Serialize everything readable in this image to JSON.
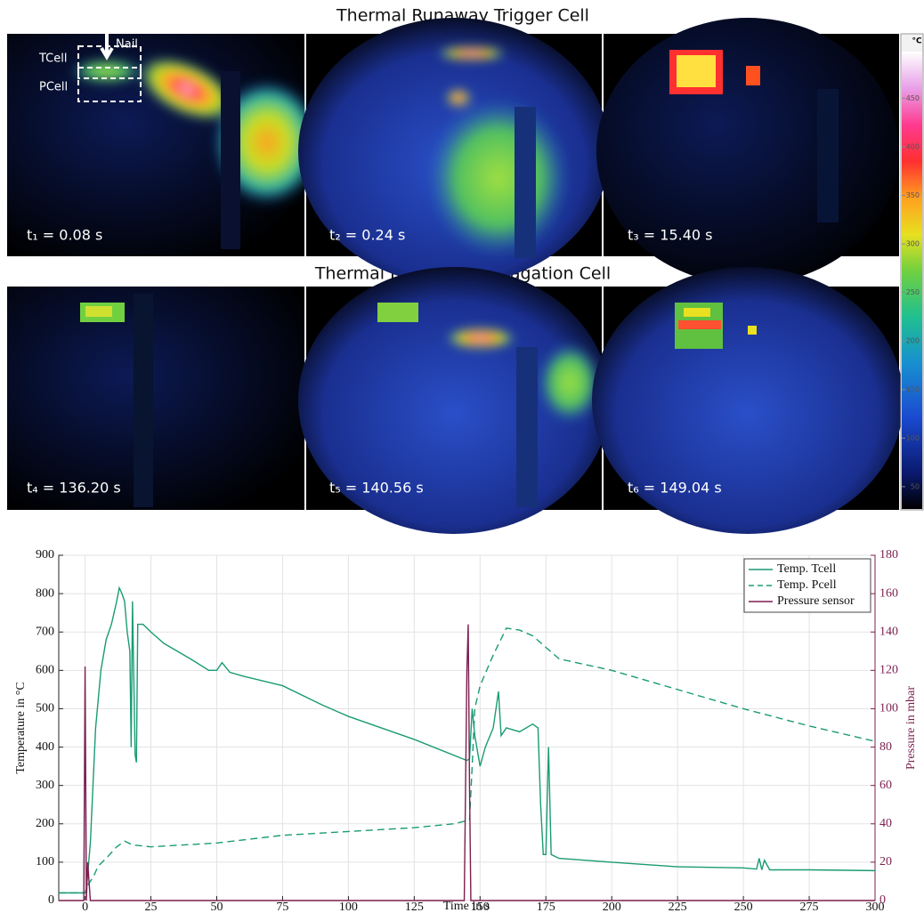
{
  "figure": {
    "title_top": "Thermal Runaway Trigger Cell",
    "title_bottom": "Thermal Runaway Propagation Cell",
    "panels": [
      "t₁ = 0.08 s",
      "t₂ = 0.24 s",
      "t₃ = 15.40 s",
      "t₄ = 136.20 s",
      "t₅ = 140.56 s",
      "t₆ = 149.04 s"
    ],
    "annotations": [
      "Nail",
      "TCell",
      "PCell"
    ],
    "colorbar": {
      "unit": "°C",
      "clim": [
        27,
        498
      ],
      "ticks": [
        50,
        100,
        150,
        200,
        250,
        300,
        350,
        400,
        450
      ]
    }
  },
  "chart_data": {
    "type": "line",
    "xlabel": "Time in s",
    "ylabel": "Temperature in °C",
    "y2label": "Pressure in mbar",
    "xlim": [
      -10,
      300
    ],
    "xticks": [
      0,
      25,
      50,
      75,
      100,
      125,
      150,
      175,
      200,
      225,
      250,
      275,
      300
    ],
    "ylim": [
      0,
      900
    ],
    "yticks": [
      0,
      100,
      200,
      300,
      400,
      500,
      600,
      700,
      800,
      900
    ],
    "y2lim": [
      0,
      180
    ],
    "y2ticks": [
      0,
      20,
      40,
      60,
      80,
      100,
      120,
      140,
      160,
      180
    ],
    "grid": true,
    "legend": "upper right",
    "series": [
      {
        "name": "Temp. Tcell",
        "color": "#1a9b74",
        "linestyle": "solid",
        "x": [
          -10,
          0,
          0.5,
          2,
          4,
          6,
          8,
          10,
          12,
          13,
          14,
          15,
          16,
          17,
          17.5,
          18,
          19,
          19.5,
          20,
          22,
          25,
          30,
          40,
          47,
          50,
          52,
          55,
          60,
          75,
          90,
          100,
          125,
          145,
          146,
          147,
          148,
          150,
          152,
          155,
          157,
          158,
          160,
          165,
          170,
          172,
          173,
          174,
          175,
          176,
          177,
          180,
          200,
          225,
          250,
          255,
          256,
          257,
          258,
          260,
          275,
          300
        ],
        "values": [
          20,
          20,
          30,
          150,
          450,
          600,
          680,
          720,
          780,
          815,
          800,
          780,
          700,
          650,
          400,
          780,
          380,
          360,
          720,
          720,
          700,
          670,
          630,
          600,
          600,
          620,
          595,
          585,
          560,
          510,
          480,
          420,
          365,
          370,
          500,
          430,
          350,
          400,
          450,
          545,
          430,
          450,
          440,
          460,
          450,
          250,
          120,
          120,
          400,
          120,
          110,
          100,
          88,
          85,
          82,
          110,
          80,
          105,
          80,
          80,
          78
        ]
      },
      {
        "name": "Temp. Pcell",
        "color": "#1a9b74",
        "linestyle": "dashed",
        "x": [
          -10,
          0,
          1,
          3,
          5,
          8,
          12,
          15,
          18,
          25,
          50,
          75,
          100,
          125,
          140,
          146,
          147,
          148,
          150,
          155,
          160,
          165,
          170,
          175,
          180,
          200,
          225,
          250,
          275,
          300
        ],
        "values": [
          20,
          20,
          40,
          60,
          90,
          110,
          140,
          155,
          145,
          140,
          150,
          170,
          180,
          190,
          200,
          210,
          350,
          500,
          560,
          640,
          710,
          705,
          690,
          660,
          630,
          600,
          550,
          500,
          455,
          415
        ]
      },
      {
        "name": "Pressure sensor",
        "color": "#7b1f4f",
        "linestyle": "solid",
        "axis": "y2",
        "x": [
          -10,
          -0.5,
          0,
          0.5,
          1,
          2,
          144,
          145,
          145.5,
          146,
          146.5,
          300
        ],
        "values": [
          0,
          0,
          122,
          0,
          20,
          0,
          0,
          120,
          144,
          60,
          0,
          0
        ]
      }
    ]
  }
}
